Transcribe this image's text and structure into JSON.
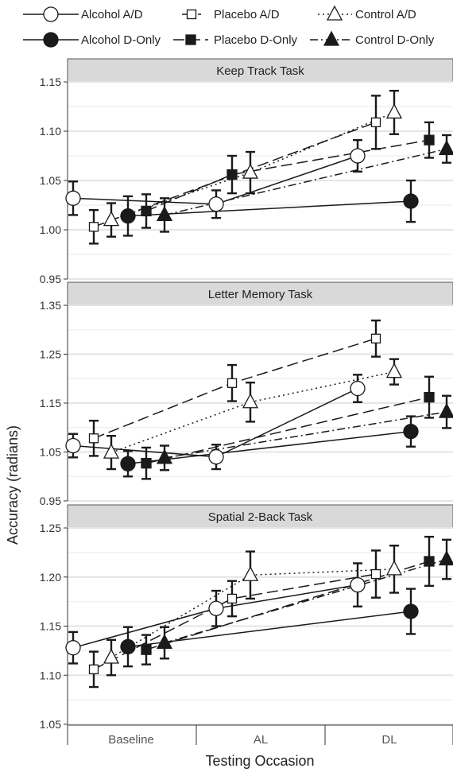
{
  "chart_data": {
    "type": "line",
    "ylabel": "Accuracy (radians)",
    "xlabel": "Testing Occasion",
    "categories": [
      "Baseline",
      "AL",
      "DL"
    ],
    "legend": {
      "position": "top",
      "entries": [
        {
          "name": "Alcohol A/D",
          "marker": "circle",
          "fill": "open",
          "dash": "solid"
        },
        {
          "name": "Placebo A/D",
          "marker": "square",
          "fill": "open",
          "dash": "dashed"
        },
        {
          "name": "Control A/D",
          "marker": "triangle",
          "fill": "open",
          "dash": "dotted"
        },
        {
          "name": "Alcohol D-Only",
          "marker": "circle",
          "fill": "filled",
          "dash": "solid"
        },
        {
          "name": "Placebo D-Only",
          "marker": "square",
          "fill": "filled",
          "dash": "dashed"
        },
        {
          "name": "Control D-Only",
          "marker": "triangle",
          "fill": "filled",
          "dash": "dashdot"
        }
      ]
    },
    "panels": [
      {
        "title": "Keep Track Task",
        "ylim": [
          0.95,
          1.15
        ],
        "yticks": [
          "0.95",
          "1.00",
          "1.05",
          "1.10",
          "1.15"
        ],
        "series": [
          {
            "name": "Alcohol A/D",
            "values": [
              1.032,
              1.026,
              1.075
            ],
            "errors": [
              0.017,
              0.014,
              0.016
            ]
          },
          {
            "name": "Placebo A/D",
            "values": [
              1.003,
              null,
              1.109
            ],
            "errors": [
              0.017,
              null,
              0.027
            ]
          },
          {
            "name": "Control A/D",
            "values": [
              1.01,
              1.058,
              1.119
            ],
            "errors": [
              0.017,
              0.021,
              0.022
            ]
          },
          {
            "name": "Alcohol D-Only",
            "values": [
              1.014,
              null,
              1.029
            ],
            "errors": [
              0.02,
              null,
              0.021
            ]
          },
          {
            "name": "Placebo D-Only",
            "values": [
              1.019,
              1.056,
              1.091
            ],
            "errors": [
              0.017,
              0.019,
              0.018
            ]
          },
          {
            "name": "Control D-Only",
            "values": [
              1.015,
              null,
              1.082
            ],
            "errors": [
              0.017,
              null,
              0.014
            ]
          }
        ]
      },
      {
        "title": "Letter Memory Task",
        "ylim": [
          0.95,
          1.35
        ],
        "yticks": [
          "0.95",
          "1.05",
          "1.15",
          "1.25",
          "1.35"
        ],
        "series": [
          {
            "name": "Alcohol A/D",
            "values": [
              1.063,
              1.04,
              1.18
            ],
            "errors": [
              0.024,
              0.025,
              0.028
            ]
          },
          {
            "name": "Placebo A/D",
            "values": [
              1.078,
              1.191,
              1.282
            ],
            "errors": [
              0.036,
              0.037,
              0.037
            ]
          },
          {
            "name": "Control A/D",
            "values": [
              1.049,
              1.152,
              1.214
            ],
            "errors": [
              0.034,
              0.04,
              0.026
            ]
          },
          {
            "name": "Alcohol D-Only",
            "values": [
              1.026,
              null,
              1.092
            ],
            "errors": [
              0.026,
              null,
              0.031
            ]
          },
          {
            "name": "Placebo D-Only",
            "values": [
              1.027,
              null,
              1.162
            ],
            "errors": [
              0.032,
              null,
              0.042
            ]
          },
          {
            "name": "Control D-Only",
            "values": [
              1.038,
              null,
              1.132
            ],
            "errors": [
              0.025,
              null,
              0.033
            ]
          }
        ]
      },
      {
        "title": "Spatial 2-Back Task",
        "ylim": [
          1.05,
          1.25
        ],
        "yticks": [
          "1.05",
          "1.10",
          "1.15",
          "1.20",
          "1.25"
        ],
        "series": [
          {
            "name": "Alcohol A/D",
            "values": [
              1.128,
              1.168,
              1.192
            ],
            "errors": [
              0.016,
              0.018,
              0.022
            ]
          },
          {
            "name": "Placebo A/D",
            "values": [
              1.106,
              1.178,
              1.203
            ],
            "errors": [
              0.018,
              0.018,
              0.024
            ]
          },
          {
            "name": "Control A/D",
            "values": [
              1.118,
              1.202,
              1.208
            ],
            "errors": [
              0.018,
              0.024,
              0.024
            ]
          },
          {
            "name": "Alcohol D-Only",
            "values": [
              1.129,
              null,
              1.165
            ],
            "errors": [
              0.02,
              null,
              0.023
            ]
          },
          {
            "name": "Placebo D-Only",
            "values": [
              1.126,
              null,
              1.216
            ],
            "errors": [
              0.015,
              null,
              0.025
            ]
          },
          {
            "name": "Control D-Only",
            "values": [
              1.133,
              null,
              1.218
            ],
            "errors": [
              0.016,
              null,
              0.02
            ]
          }
        ]
      }
    ]
  }
}
